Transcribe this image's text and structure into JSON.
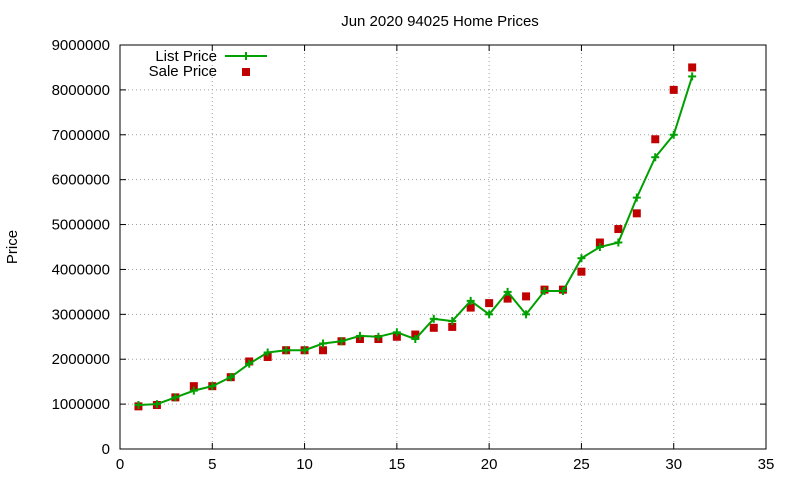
{
  "chart_data": {
    "type": "line",
    "title": "Jun 2020 94025 Home Prices",
    "xlabel": "",
    "ylabel": "Price",
    "xlim": [
      0,
      35
    ],
    "ylim": [
      0,
      9000000
    ],
    "x_ticks": [
      "0",
      "5",
      "10",
      "15",
      "20",
      "25",
      "30",
      "35"
    ],
    "y_ticks": [
      "0",
      "1000000",
      "2000000",
      "3000000",
      "4000000",
      "5000000",
      "6000000",
      "7000000",
      "8000000",
      "9000000"
    ],
    "grid": true,
    "legend_position": "top-left",
    "colors": {
      "list": "#00a000",
      "sale": "#c00000",
      "grid": "#a0a0a0"
    },
    "series": [
      {
        "name": "List Price",
        "style": "linespoints",
        "marker": "plus",
        "x": [
          1,
          2,
          3,
          4,
          5,
          6,
          7,
          8,
          9,
          10,
          11,
          12,
          13,
          14,
          15,
          16,
          17,
          18,
          19,
          20,
          21,
          22,
          23,
          24,
          25,
          26,
          27,
          28,
          29,
          30,
          31
        ],
        "y": [
          980000,
          1000000,
          1150000,
          1300000,
          1400000,
          1600000,
          1900000,
          2150000,
          2200000,
          2200000,
          2350000,
          2400000,
          2520000,
          2500000,
          2600000,
          2450000,
          2900000,
          2850000,
          3300000,
          3000000,
          3500000,
          3000000,
          3520000,
          3520000,
          4250000,
          4500000,
          4600000,
          5600000,
          6500000,
          7000000,
          8300000
        ]
      },
      {
        "name": "Sale Price",
        "style": "points",
        "marker": "square",
        "x": [
          1,
          2,
          3,
          4,
          5,
          6,
          7,
          8,
          9,
          10,
          11,
          12,
          13,
          14,
          15,
          16,
          17,
          18,
          19,
          20,
          21,
          22,
          23,
          24,
          25,
          26,
          27,
          28,
          29,
          30,
          31
        ],
        "y": [
          950000,
          980000,
          1150000,
          1400000,
          1400000,
          1600000,
          1950000,
          2050000,
          2200000,
          2200000,
          2200000,
          2400000,
          2450000,
          2450000,
          2500000,
          2550000,
          2700000,
          2720000,
          3150000,
          3250000,
          3350000,
          3400000,
          3550000,
          3550000,
          3950000,
          4600000,
          4900000,
          5250000,
          6900000,
          8000000,
          8500000
        ]
      }
    ]
  }
}
